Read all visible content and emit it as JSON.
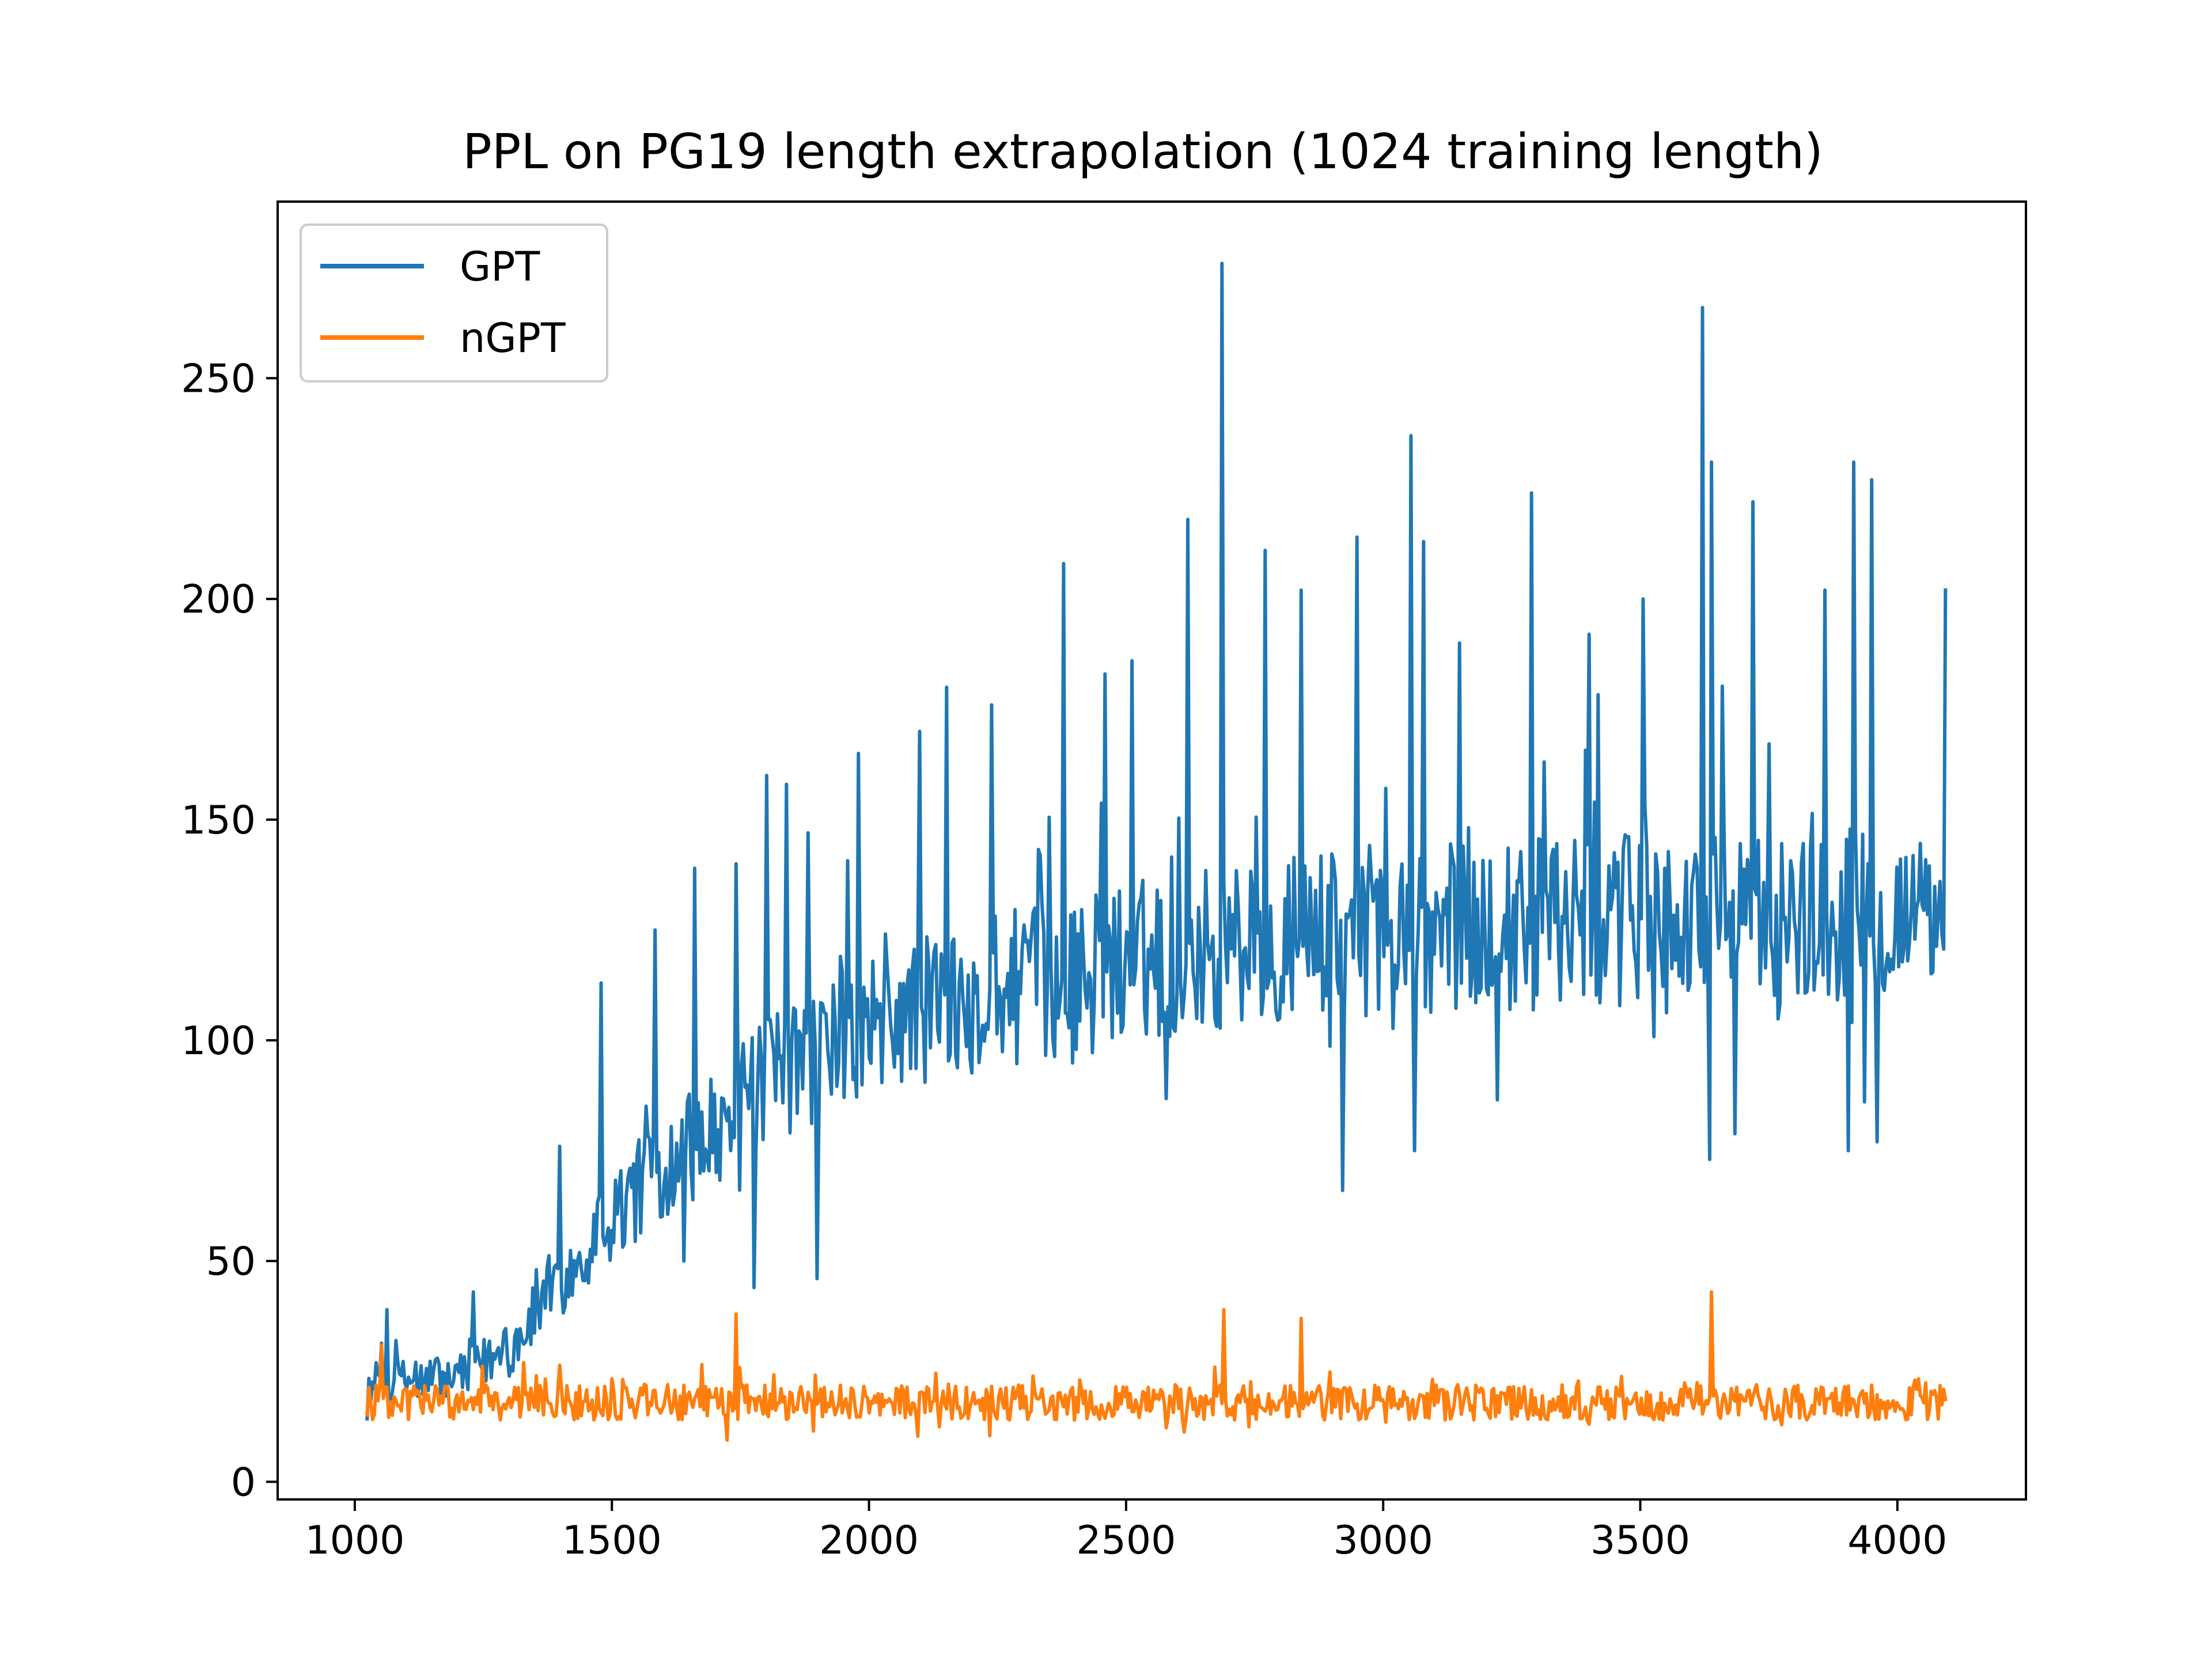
{
  "colors": {
    "background": "#ffffff",
    "axes": "#000000",
    "GPT": "#1f77b4",
    "nGPT": "#ff7f0e",
    "legend_border": "#cccccc"
  },
  "chart_data": {
    "type": "line",
    "title": "PPL on PG19 length extrapolation (1024 training length)",
    "xlabel": "",
    "ylabel": "",
    "xlim": [
      850,
      4250
    ],
    "ylim": [
      -4,
      290
    ],
    "xticks": [
      1000,
      1500,
      2000,
      2500,
      3000,
      3500,
      4000
    ],
    "xtick_labels": [
      "1000",
      "1500",
      "2000",
      "2500",
      "3000",
      "3500",
      "4000"
    ],
    "yticks": [
      0,
      50,
      100,
      150,
      200,
      250
    ],
    "ytick_labels": [
      "0",
      "50",
      "100",
      "150",
      "200",
      "250"
    ],
    "grid": false,
    "legend": {
      "position": "upper-left",
      "entries": [
        "GPT",
        "nGPT"
      ]
    },
    "x_range": [
      1024,
      4096
    ],
    "series": [
      {
        "name": "GPT",
        "color": "#1f77b4",
        "trend": [
          [
            1024,
            22
          ],
          [
            1200,
            24
          ],
          [
            1300,
            30
          ],
          [
            1400,
            45
          ],
          [
            1500,
            60
          ],
          [
            1600,
            72
          ],
          [
            1700,
            80
          ],
          [
            1800,
            90
          ],
          [
            1900,
            97
          ],
          [
            2000,
            103
          ],
          [
            2200,
            110
          ],
          [
            2400,
            115
          ],
          [
            2600,
            120
          ],
          [
            2800,
            123
          ],
          [
            3000,
            125
          ],
          [
            3200,
            126
          ],
          [
            3500,
            127
          ],
          [
            3800,
            128
          ],
          [
            4096,
            129
          ]
        ],
        "spikes": [
          [
            1062,
            39
          ],
          [
            1080,
            32
          ],
          [
            1230,
            43
          ],
          [
            1400,
            76
          ],
          [
            1480,
            113
          ],
          [
            1585,
            125
          ],
          [
            1660,
            139
          ],
          [
            1740,
            140
          ],
          [
            1800,
            160
          ],
          [
            1840,
            158
          ],
          [
            1880,
            147
          ],
          [
            1980,
            165
          ],
          [
            2100,
            170
          ],
          [
            2150,
            180
          ],
          [
            2240,
            176
          ],
          [
            2380,
            208
          ],
          [
            2460,
            183
          ],
          [
            2510,
            186
          ],
          [
            2620,
            218
          ],
          [
            2685,
            276
          ],
          [
            2770,
            211
          ],
          [
            2840,
            202
          ],
          [
            2950,
            214
          ],
          [
            3055,
            237
          ],
          [
            3080,
            213
          ],
          [
            3150,
            190
          ],
          [
            3290,
            224
          ],
          [
            3400,
            192
          ],
          [
            3505,
            200
          ],
          [
            3620,
            266
          ],
          [
            3640,
            231
          ],
          [
            3720,
            222
          ],
          [
            3860,
            202
          ],
          [
            3915,
            231
          ],
          [
            3950,
            227
          ],
          [
            4095,
            202
          ]
        ],
        "dips": [
          [
            1900,
            46
          ],
          [
            1775,
            44
          ],
          [
            2920,
            66
          ],
          [
            3060,
            75
          ],
          [
            3635,
            73
          ],
          [
            3905,
            75
          ],
          [
            3960,
            77
          ]
        ]
      },
      {
        "name": "nGPT",
        "color": "#ff7f0e",
        "trend": [
          [
            1024,
            18
          ],
          [
            4096,
            18
          ]
        ],
        "spikes": [
          [
            1052,
            31
          ],
          [
            1740,
            38
          ],
          [
            2690,
            39
          ],
          [
            2840,
            37
          ],
          [
            3640,
            43
          ]
        ],
        "dips": []
      }
    ]
  }
}
